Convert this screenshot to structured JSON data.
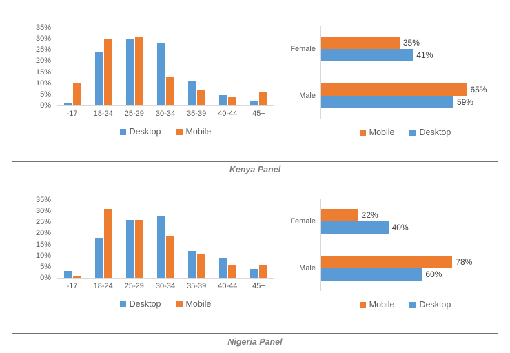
{
  "colors": {
    "desktop": "#5B9BD5",
    "mobile": "#ED7D31",
    "axis_text": "#595959",
    "data_label_text": "#404040",
    "legend_text": "#595959",
    "axis_line": "#D9D9D9",
    "divider": "#737373",
    "caption_text": "#7F7F7F"
  },
  "panels": [
    {
      "caption": "Kenya Panel"
    },
    {
      "caption": "Nigeria Panel"
    }
  ],
  "chart_data": [
    {
      "id": "kenya-age",
      "panel": "Kenya Panel",
      "type": "bar",
      "title": "",
      "xlabel": "",
      "ylabel": "",
      "grid": false,
      "categories": [
        "-17",
        "18-24",
        "25-29",
        "30-34",
        "35-39",
        "40-44",
        "45+"
      ],
      "series": [
        {
          "name": "Desktop",
          "color_key": "desktop",
          "values": [
            1,
            24,
            30,
            28,
            11,
            4.5,
            2
          ]
        },
        {
          "name": "Mobile",
          "color_key": "mobile",
          "values": [
            10,
            30,
            31,
            13,
            7,
            4,
            6
          ]
        }
      ],
      "ylim": [
        0,
        35
      ],
      "y_ticks": [
        0,
        5,
        10,
        15,
        20,
        25,
        30,
        35
      ],
      "y_tick_labels": [
        "0%",
        "5%",
        "10%",
        "15%",
        "20%",
        "25%",
        "30%",
        "35%"
      ],
      "legend": {
        "position": "bottom",
        "entries": [
          "Desktop",
          "Mobile"
        ]
      }
    },
    {
      "id": "kenya-gender",
      "panel": "Kenya Panel",
      "type": "bar-horizontal",
      "title": "",
      "grid": false,
      "categories": [
        "Female",
        "Male"
      ],
      "series": [
        {
          "name": "Mobile",
          "color_key": "mobile",
          "values": [
            35,
            65
          ],
          "labels": [
            "35%",
            "65%"
          ]
        },
        {
          "name": "Desktop",
          "color_key": "desktop",
          "values": [
            41,
            59
          ],
          "labels": [
            "41%",
            "59%"
          ]
        }
      ],
      "xlim": [
        0,
        75
      ],
      "legend": {
        "position": "bottom",
        "entries": [
          "Mobile",
          "Desktop"
        ]
      }
    },
    {
      "id": "nigeria-age",
      "panel": "Nigeria Panel",
      "type": "bar",
      "title": "",
      "xlabel": "",
      "ylabel": "",
      "grid": false,
      "categories": [
        "-17",
        "18-24",
        "25-29",
        "30-34",
        "35-39",
        "40-44",
        "45+"
      ],
      "series": [
        {
          "name": "Desktop",
          "color_key": "desktop",
          "values": [
            3,
            18,
            26,
            28,
            12,
            9,
            4
          ]
        },
        {
          "name": "Mobile",
          "color_key": "mobile",
          "values": [
            1,
            31,
            26,
            19,
            11,
            6,
            6
          ]
        }
      ],
      "ylim": [
        0,
        35
      ],
      "y_ticks": [
        0,
        5,
        10,
        15,
        20,
        25,
        30,
        35
      ],
      "y_tick_labels": [
        "0%",
        "5%",
        "10%",
        "15%",
        "20%",
        "25%",
        "30%",
        "35%"
      ],
      "legend": {
        "position": "bottom",
        "entries": [
          "Desktop",
          "Mobile"
        ]
      }
    },
    {
      "id": "nigeria-gender",
      "panel": "Nigeria Panel",
      "type": "bar-horizontal",
      "title": "",
      "grid": false,
      "categories": [
        "Female",
        "Male"
      ],
      "series": [
        {
          "name": "Mobile",
          "color_key": "mobile",
          "values": [
            22,
            78
          ],
          "labels": [
            "22%",
            "78%"
          ]
        },
        {
          "name": "Desktop",
          "color_key": "desktop",
          "values": [
            40,
            60
          ],
          "labels": [
            "40%",
            "60%"
          ]
        }
      ],
      "xlim": [
        0,
        100
      ],
      "legend": {
        "position": "bottom",
        "entries": [
          "Mobile",
          "Desktop"
        ]
      }
    }
  ]
}
